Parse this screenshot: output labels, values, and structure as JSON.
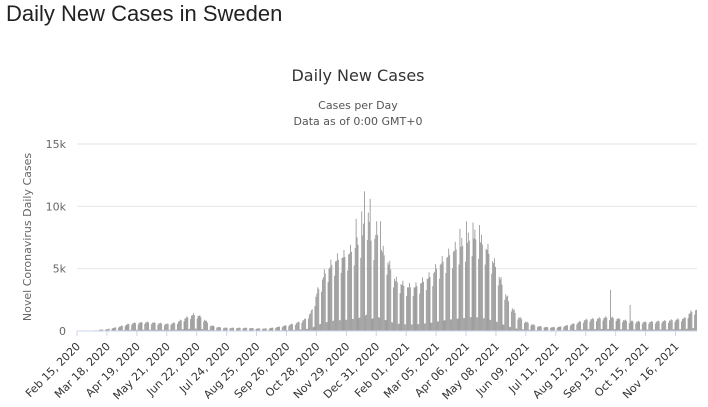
{
  "page": {
    "title": "Daily New Cases in Sweden"
  },
  "chart_data": {
    "type": "bar",
    "title": "Daily New Cases",
    "subtitle_line1": "Cases per Day",
    "subtitle_line2": "Data as of 0:00 GMT+0",
    "ylabel": "Novel Coronavirus Daily Cases",
    "xlabel": "",
    "ylim": [
      0,
      15000
    ],
    "y_ticks": [
      {
        "value": 0,
        "label": "0"
      },
      {
        "value": 5000,
        "label": "5k"
      },
      {
        "value": 10000,
        "label": "10k"
      },
      {
        "value": 15000,
        "label": "15k"
      }
    ],
    "x_start": "2020-02-15",
    "x_end": "2021-12-08",
    "x_tick_labels": [
      {
        "date": "2020-02-15",
        "label": "Feb 15, 2020"
      },
      {
        "date": "2020-03-18",
        "label": "Mar 18, 2020"
      },
      {
        "date": "2020-04-19",
        "label": "Apr 19, 2020"
      },
      {
        "date": "2020-05-21",
        "label": "May 21, 2020"
      },
      {
        "date": "2020-06-22",
        "label": "Jun 22, 2020"
      },
      {
        "date": "2020-07-24",
        "label": "Jul 24, 2020"
      },
      {
        "date": "2020-08-25",
        "label": "Aug 25, 2020"
      },
      {
        "date": "2020-09-26",
        "label": "Sep 26, 2020"
      },
      {
        "date": "2020-10-28",
        "label": "Oct 28, 2020"
      },
      {
        "date": "2020-11-29",
        "label": "Nov 29, 2020"
      },
      {
        "date": "2020-12-31",
        "label": "Dec 31, 2020"
      },
      {
        "date": "2021-02-01",
        "label": "Feb 01, 2021"
      },
      {
        "date": "2021-03-05",
        "label": "Mar 05, 2021"
      },
      {
        "date": "2021-04-06",
        "label": "Apr 06, 2021"
      },
      {
        "date": "2021-05-08",
        "label": "May 08, 2021"
      },
      {
        "date": "2021-06-09",
        "label": "Jun 09, 2021"
      },
      {
        "date": "2021-07-11",
        "label": "Jul 11, 2021"
      },
      {
        "date": "2021-08-12",
        "label": "Aug 12, 2021"
      },
      {
        "date": "2021-09-13",
        "label": "Sep 13, 2021"
      },
      {
        "date": "2021-10-15",
        "label": "Oct 15, 2021"
      },
      {
        "date": "2021-11-16",
        "label": "Nov 16, 2021"
      }
    ],
    "series": [
      {
        "values": [
          [
            "2020-02-15",
            0
          ],
          [
            "2020-03-01",
            10
          ],
          [
            "2020-03-10",
            100
          ],
          [
            "2020-03-18",
            150
          ],
          [
            "2020-03-28",
            300
          ],
          [
            "2020-04-05",
            450
          ],
          [
            "2020-04-12",
            600
          ],
          [
            "2020-04-19",
            650
          ],
          [
            "2020-04-28",
            700
          ],
          [
            "2020-05-07",
            650
          ],
          [
            "2020-05-15",
            600
          ],
          [
            "2020-05-21",
            550
          ],
          [
            "2020-05-30",
            650
          ],
          [
            "2020-06-06",
            900
          ],
          [
            "2020-06-12",
            1100
          ],
          [
            "2020-06-18",
            1300
          ],
          [
            "2020-06-24",
            1200
          ],
          [
            "2020-06-30",
            900
          ],
          [
            "2020-07-06",
            450
          ],
          [
            "2020-07-15",
            300
          ],
          [
            "2020-07-24",
            250
          ],
          [
            "2020-08-05",
            250
          ],
          [
            "2020-08-15",
            250
          ],
          [
            "2020-08-25",
            200
          ],
          [
            "2020-09-05",
            200
          ],
          [
            "2020-09-15",
            300
          ],
          [
            "2020-09-26",
            450
          ],
          [
            "2020-10-05",
            600
          ],
          [
            "2020-10-15",
            900
          ],
          [
            "2020-10-22",
            1500
          ],
          [
            "2020-10-28",
            3000
          ],
          [
            "2020-11-05",
            4500
          ],
          [
            "2020-11-15",
            5500
          ],
          [
            "2020-11-22",
            5800
          ],
          [
            "2020-11-29",
            6000
          ],
          [
            "2020-12-06",
            6500
          ],
          [
            "2020-12-12",
            7000
          ],
          [
            "2020-12-18",
            8000
          ],
          [
            "2020-12-22",
            9500
          ],
          [
            "2020-12-26",
            6500
          ],
          [
            "2020-12-31",
            8000
          ],
          [
            "2021-01-05",
            6500
          ],
          [
            "2021-01-12",
            5500
          ],
          [
            "2021-01-20",
            4000
          ],
          [
            "2021-02-01",
            3500
          ],
          [
            "2021-02-10",
            3500
          ],
          [
            "2021-02-20",
            4000
          ],
          [
            "2021-03-01",
            4500
          ],
          [
            "2021-03-05",
            5000
          ],
          [
            "2021-03-15",
            5800
          ],
          [
            "2021-03-25",
            6500
          ],
          [
            "2021-04-06",
            7000
          ],
          [
            "2021-04-12",
            7500
          ],
          [
            "2021-04-20",
            7200
          ],
          [
            "2021-04-28",
            6500
          ],
          [
            "2021-05-08",
            5000
          ],
          [
            "2021-05-15",
            3500
          ],
          [
            "2021-05-22",
            2200
          ],
          [
            "2021-05-30",
            1200
          ],
          [
            "2021-06-09",
            700
          ],
          [
            "2021-06-20",
            400
          ],
          [
            "2021-07-01",
            300
          ],
          [
            "2021-07-11",
            300
          ],
          [
            "2021-07-20",
            400
          ],
          [
            "2021-07-31",
            600
          ],
          [
            "2021-08-12",
            900
          ],
          [
            "2021-08-25",
            1000
          ],
          [
            "2021-09-05",
            1100
          ],
          [
            "2021-09-13",
            1000
          ],
          [
            "2021-09-25",
            800
          ],
          [
            "2021-10-05",
            750
          ],
          [
            "2021-10-15",
            700
          ],
          [
            "2021-10-25",
            750
          ],
          [
            "2021-11-05",
            800
          ],
          [
            "2021-11-16",
            900
          ],
          [
            "2021-11-25",
            1000
          ],
          [
            "2021-12-02",
            1500
          ],
          [
            "2021-12-08",
            1700
          ]
        ]
      }
    ],
    "spikes": [
      [
        "2020-12-18",
        11200
      ],
      [
        "2020-12-24",
        10600
      ],
      [
        "2020-12-15",
        9600
      ],
      [
        "2020-12-09",
        9000
      ],
      [
        "2021-01-04",
        8800
      ],
      [
        "2021-04-06",
        8800
      ],
      [
        "2021-04-13",
        8700
      ],
      [
        "2021-04-20",
        8500
      ],
      [
        "2021-03-30",
        8200
      ],
      [
        "2021-09-07",
        3300
      ],
      [
        "2021-09-28",
        2100
      ]
    ],
    "bar_color": "#999999",
    "grid": true,
    "grid_color": "#e6e6e6",
    "legend": "none"
  }
}
